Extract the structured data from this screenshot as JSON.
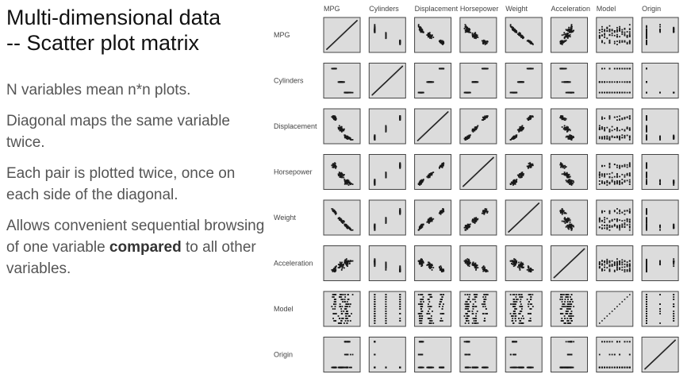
{
  "slide": {
    "title_line1": "Multi-dimensional data",
    "title_line2": "-- Scatter plot matrix",
    "bullet1": "N variables mean n*n plots.",
    "bullet2": "Diagonal maps the same variable twice.",
    "bullet3": "Each pair is plotted twice, once on each side of the diagonal.",
    "bullet4_pre": "Allows convenient sequential browsing of one variable ",
    "bullet4_bold": "compared",
    "bullet4_post": " to all other variables."
  },
  "chart_data": {
    "type": "scatter",
    "variables": [
      "MPG",
      "Cylinders",
      "Displacement",
      "Horsepower",
      "Weight",
      "Acceleration",
      "Model",
      "Origin"
    ],
    "diagonal": "identity",
    "grid": false
  }
}
